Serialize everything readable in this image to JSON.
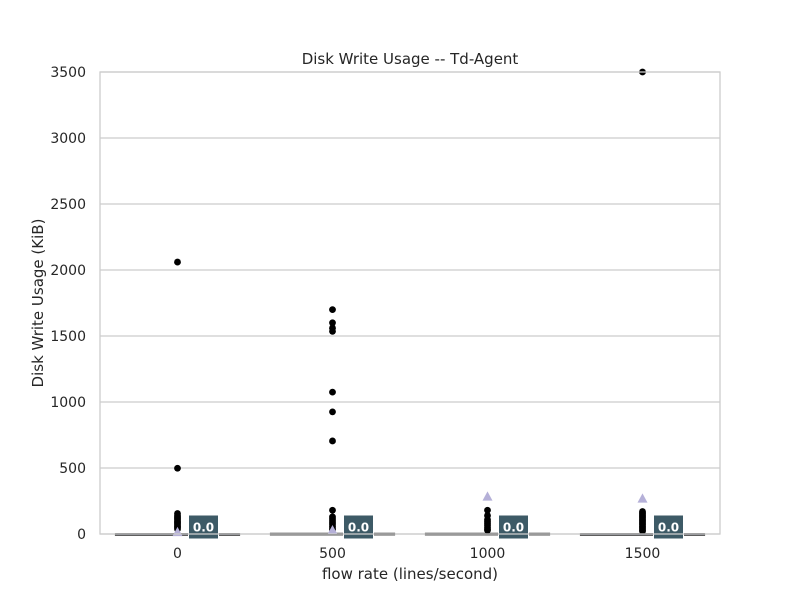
{
  "chart_data": {
    "type": "box",
    "title": "Disk Write Usage -- Td-Agent",
    "xlabel": "flow rate (lines/second)",
    "ylabel": "Disk Write Usage (KiB)",
    "ylim": [
      0,
      3500
    ],
    "yticks": [
      0,
      500,
      1000,
      1500,
      2000,
      2500,
      3000,
      3500
    ],
    "grid": true,
    "categories": [
      "0",
      "500",
      "1000",
      "1500"
    ],
    "boxes": [
      {
        "category": "0",
        "q1": 0,
        "median": 0,
        "q3": 2,
        "whisker_low": 0,
        "whisker_high": 5,
        "mean": 16,
        "median_label": "0.0",
        "outliers": [
          2060,
          498,
          155,
          140,
          128,
          118,
          108,
          98,
          88,
          78,
          68,
          58,
          48,
          38
        ]
      },
      {
        "category": "500",
        "q1": 0,
        "median": 0,
        "q3": 5,
        "whisker_low": 0,
        "whisker_high": 12,
        "mean": 30,
        "median_label": "0.0",
        "outliers": [
          1700,
          1600,
          1560,
          1535,
          1075,
          925,
          705,
          180,
          130,
          115,
          100,
          88,
          75,
          60,
          45,
          32
        ]
      },
      {
        "category": "1000",
        "q1": 0,
        "median": 0,
        "q3": 5,
        "whisker_low": 0,
        "whisker_high": 12,
        "mean": 285,
        "median_label": "0.0",
        "outliers": [
          180,
          140,
          110,
          95,
          80,
          65,
          50,
          38,
          28
        ]
      },
      {
        "category": "1500",
        "q1": 0,
        "median": 0,
        "q3": 2,
        "whisker_low": 0,
        "whisker_high": 6,
        "mean": 270,
        "median_label": "0.0",
        "outliers": [
          3500,
          170,
          160,
          150,
          140,
          130,
          120,
          110,
          100,
          90,
          80,
          70,
          60,
          50,
          40,
          30,
          22
        ]
      }
    ]
  },
  "colors": {
    "box_face": "#4c72b0",
    "median_badge": "#3d5a66",
    "mean_marker": "#b5b0d8",
    "outlier": "#000000",
    "grid": "#cccccc",
    "text": "#262626"
  }
}
